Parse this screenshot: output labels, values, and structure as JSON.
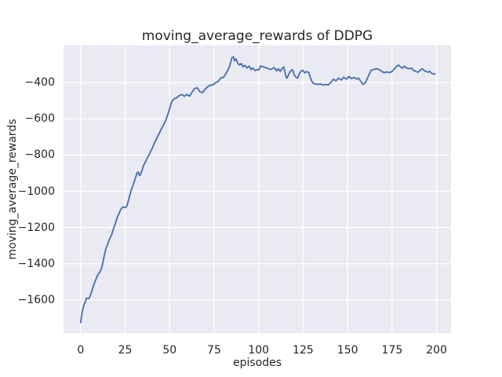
{
  "figure": {
    "title": "moving_average_rewards of DDPG",
    "xlabel": "episodes",
    "ylabel": "moving_average_rewards"
  },
  "chart_data": {
    "type": "line",
    "title": "moving_average_rewards of DDPG",
    "xlabel": "episodes",
    "ylabel": "moving_average_rewards",
    "x_ticks": [
      0,
      25,
      50,
      75,
      100,
      125,
      150,
      175,
      200
    ],
    "y_ticks": [
      -400,
      -600,
      -800,
      -1000,
      -1200,
      -1400,
      -1600
    ],
    "xlim": [
      -9.6,
      208.1
    ],
    "ylim": [
      -1784,
      -193
    ],
    "grid": true,
    "legend": "none",
    "style": "seaborn-darkgrid",
    "line_color": "#4c72b0",
    "axes_bg": "#eaeaf2",
    "grid_color": "#ffffff",
    "text_color": "#262626",
    "series": [
      {
        "name": "moving_average_rewards",
        "points": [
          [
            0,
            -1725
          ],
          [
            0.5,
            -1692
          ],
          [
            1,
            -1658
          ],
          [
            1.5,
            -1643
          ],
          [
            2,
            -1624
          ],
          [
            2.5,
            -1614
          ],
          [
            3,
            -1598
          ],
          [
            3.3,
            -1590
          ],
          [
            4,
            -1592
          ],
          [
            4.6,
            -1593
          ],
          [
            5,
            -1586
          ],
          [
            5.5,
            -1573
          ],
          [
            6,
            -1561
          ],
          [
            6.9,
            -1532
          ],
          [
            7.9,
            -1503
          ],
          [
            8.8,
            -1481
          ],
          [
            9.5,
            -1465
          ],
          [
            10.1,
            -1455
          ],
          [
            10.9,
            -1445
          ],
          [
            11.7,
            -1427
          ],
          [
            12.4,
            -1400
          ],
          [
            13.2,
            -1360
          ],
          [
            14.2,
            -1318
          ],
          [
            15.3,
            -1289
          ],
          [
            16.1,
            -1267
          ],
          [
            17.2,
            -1246
          ],
          [
            17.9,
            -1224
          ],
          [
            18.6,
            -1202
          ],
          [
            19.4,
            -1181
          ],
          [
            20.1,
            -1159
          ],
          [
            20.8,
            -1137
          ],
          [
            21.6,
            -1123
          ],
          [
            22.3,
            -1105
          ],
          [
            23,
            -1094
          ],
          [
            23.8,
            -1087
          ],
          [
            24.9,
            -1090
          ],
          [
            25.5,
            -1087
          ],
          [
            26,
            -1080
          ],
          [
            27,
            -1045
          ],
          [
            28,
            -1008
          ],
          [
            29,
            -978
          ],
          [
            30,
            -950
          ],
          [
            31,
            -921
          ],
          [
            31.8,
            -897
          ],
          [
            32.4,
            -894
          ],
          [
            33,
            -913
          ],
          [
            33.6,
            -909
          ],
          [
            34.5,
            -884
          ],
          [
            35.5,
            -855
          ],
          [
            36.6,
            -834
          ],
          [
            37.4,
            -816
          ],
          [
            38.5,
            -798
          ],
          [
            39.5,
            -776
          ],
          [
            40.4,
            -759
          ],
          [
            41.4,
            -735
          ],
          [
            42.4,
            -715
          ],
          [
            43.3,
            -696
          ],
          [
            44.3,
            -678
          ],
          [
            45.1,
            -660
          ],
          [
            46.3,
            -639
          ],
          [
            47.3,
            -620
          ],
          [
            48,
            -603
          ],
          [
            49.2,
            -570
          ],
          [
            50,
            -545
          ],
          [
            50.8,
            -515
          ],
          [
            51.7,
            -497
          ],
          [
            52.8,
            -488
          ],
          [
            53.9,
            -484
          ],
          [
            55.3,
            -472
          ],
          [
            56.8,
            -465
          ],
          [
            58.3,
            -475
          ],
          [
            59.7,
            -465
          ],
          [
            61.2,
            -475
          ],
          [
            62.7,
            -451
          ],
          [
            64.1,
            -432
          ],
          [
            65.6,
            -429
          ],
          [
            67.1,
            -451
          ],
          [
            68.5,
            -455
          ],
          [
            70,
            -436
          ],
          [
            71.5,
            -422
          ],
          [
            72.9,
            -414
          ],
          [
            74.4,
            -412
          ],
          [
            75.9,
            -400
          ],
          [
            77.3,
            -393
          ],
          [
            78.8,
            -374
          ],
          [
            80.3,
            -371
          ],
          [
            81.5,
            -352
          ],
          [
            82.5,
            -335
          ],
          [
            83.5,
            -313
          ],
          [
            84.3,
            -288
          ],
          [
            85,
            -262
          ],
          [
            85.9,
            -257
          ],
          [
            86.5,
            -280
          ],
          [
            87.3,
            -269
          ],
          [
            88.4,
            -295
          ],
          [
            89.4,
            -302
          ],
          [
            90.3,
            -295
          ],
          [
            91.3,
            -313
          ],
          [
            92.3,
            -305
          ],
          [
            93.5,
            -319
          ],
          [
            94.7,
            -309
          ],
          [
            95.7,
            -328
          ],
          [
            96.7,
            -319
          ],
          [
            97.9,
            -333
          ],
          [
            99.1,
            -328
          ],
          [
            100.1,
            -330
          ],
          [
            101.1,
            -309
          ],
          [
            102.3,
            -312
          ],
          [
            103.4,
            -315
          ],
          [
            104.5,
            -319
          ],
          [
            105.6,
            -323
          ],
          [
            106.7,
            -328
          ],
          [
            107.8,
            -322
          ],
          [
            108.9,
            -318
          ],
          [
            110.1,
            -335
          ],
          [
            111.1,
            -323
          ],
          [
            112.1,
            -338
          ],
          [
            113.3,
            -321
          ],
          [
            114.1,
            -313
          ],
          [
            115.5,
            -371
          ],
          [
            116,
            -375
          ],
          [
            117,
            -352
          ],
          [
            117.8,
            -338
          ],
          [
            119,
            -328
          ],
          [
            120,
            -357
          ],
          [
            121,
            -371
          ],
          [
            121.9,
            -375
          ],
          [
            122.9,
            -349
          ],
          [
            124,
            -335
          ],
          [
            124.8,
            -332
          ],
          [
            125.9,
            -346
          ],
          [
            126.9,
            -339
          ],
          [
            128.1,
            -343
          ],
          [
            129.3,
            -378
          ],
          [
            129.9,
            -393
          ],
          [
            130.7,
            -404
          ],
          [
            131.8,
            -407
          ],
          [
            133.2,
            -410
          ],
          [
            134.7,
            -407
          ],
          [
            136.2,
            -413
          ],
          [
            137.7,
            -410
          ],
          [
            139.1,
            -413
          ],
          [
            140.6,
            -400
          ],
          [
            142,
            -381
          ],
          [
            143.4,
            -390
          ],
          [
            144.9,
            -375
          ],
          [
            146.4,
            -385
          ],
          [
            147.8,
            -371
          ],
          [
            149.3,
            -381
          ],
          [
            150.8,
            -366
          ],
          [
            152.2,
            -378
          ],
          [
            153.7,
            -371
          ],
          [
            155.2,
            -381
          ],
          [
            156.2,
            -375
          ],
          [
            157.4,
            -393
          ],
          [
            158.6,
            -410
          ],
          [
            160,
            -400
          ],
          [
            161.8,
            -361
          ],
          [
            163.2,
            -332
          ],
          [
            164.7,
            -327
          ],
          [
            166.2,
            -323
          ],
          [
            167.6,
            -327
          ],
          [
            169.1,
            -338
          ],
          [
            170.6,
            -345
          ],
          [
            172,
            -341
          ],
          [
            173.5,
            -345
          ],
          [
            175,
            -338
          ],
          [
            176.4,
            -323
          ],
          [
            177.6,
            -309
          ],
          [
            178.6,
            -303
          ],
          [
            179.7,
            -313
          ],
          [
            180.8,
            -320
          ],
          [
            182,
            -309
          ],
          [
            183,
            -318
          ],
          [
            184.5,
            -323
          ],
          [
            186,
            -320
          ],
          [
            187,
            -332
          ],
          [
            188.2,
            -338
          ],
          [
            189.6,
            -342
          ],
          [
            190.8,
            -332
          ],
          [
            191.8,
            -323
          ],
          [
            192.9,
            -332
          ],
          [
            194,
            -338
          ],
          [
            195.2,
            -342
          ],
          [
            196.2,
            -338
          ],
          [
            197,
            -347
          ],
          [
            197.7,
            -350
          ],
          [
            198.5,
            -353
          ],
          [
            199,
            -352
          ]
        ]
      }
    ]
  }
}
